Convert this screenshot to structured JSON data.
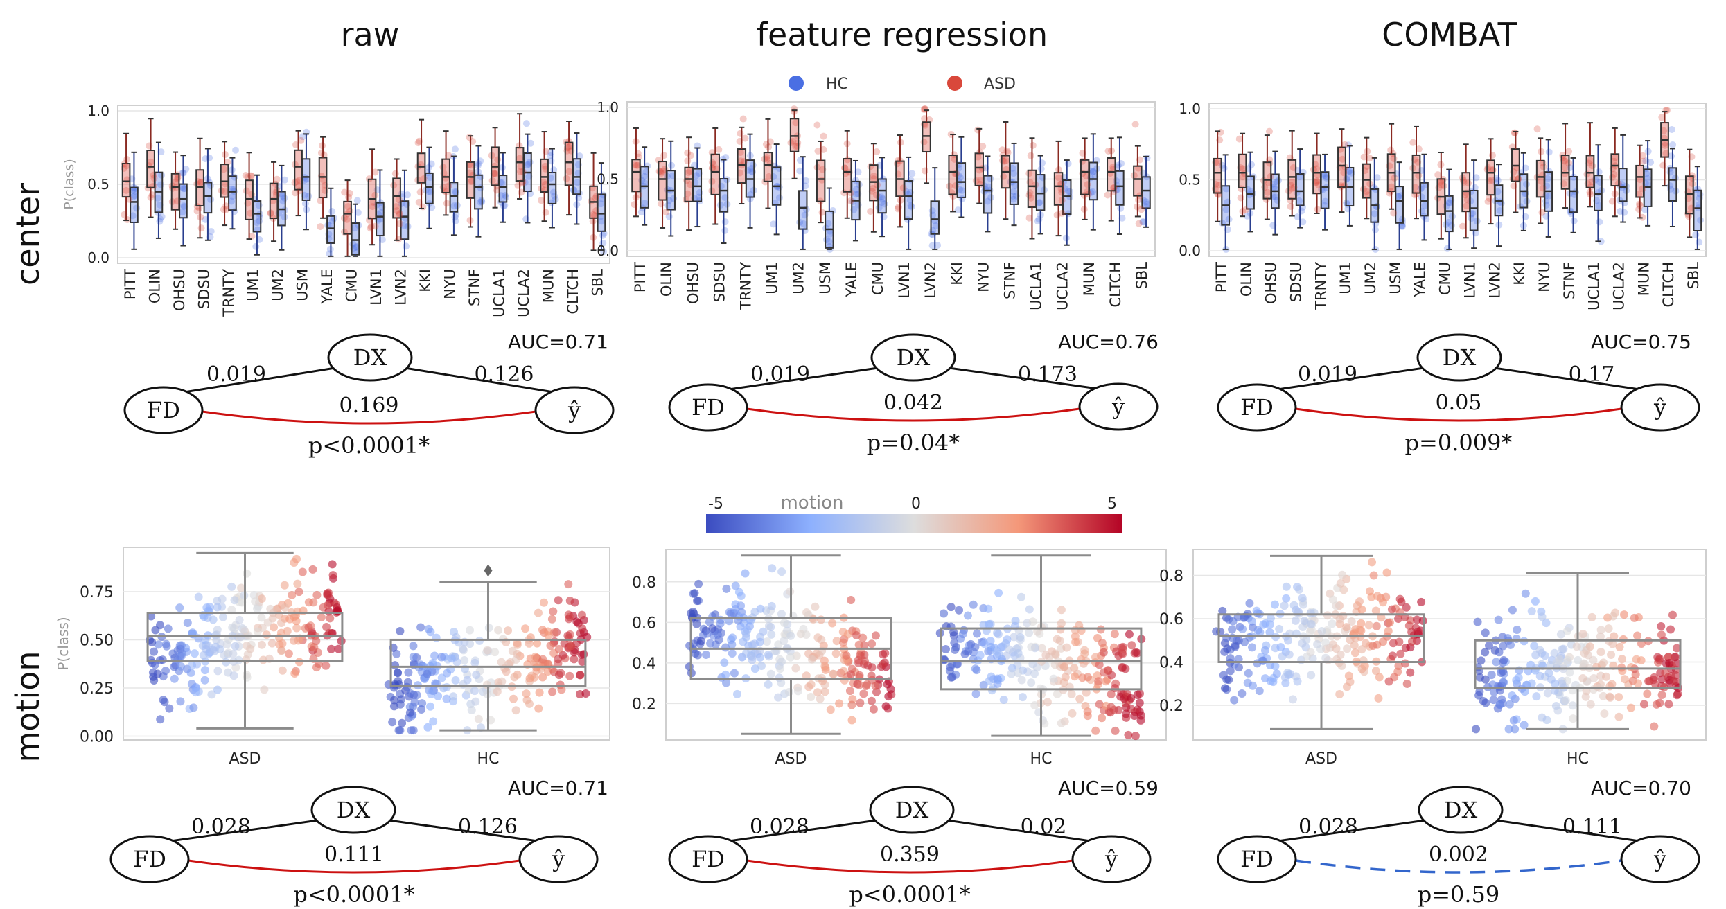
{
  "column_titles": [
    "raw",
    "feature regression",
    "COMBAT"
  ],
  "row_labels": [
    "center",
    "motion"
  ],
  "legend": [
    {
      "label": "HC",
      "color": "#4a6fe3"
    },
    {
      "label": "ASD",
      "color": "#d9483b"
    }
  ],
  "colorbar": {
    "label": "motion",
    "ticks": [
      -5,
      0,
      5
    ],
    "tick_labels": [
      "-5",
      "0",
      "5"
    ],
    "colormap": "coolwarm"
  },
  "colors": {
    "hc": "#4a6fe3",
    "asd": "#d9483b",
    "significant_edge": "#cc1111",
    "nonsignificant_edge": "#3366cc",
    "box_line": "#333333",
    "motion_box_line": "#8c8c8c",
    "grid": "#e6e6e6",
    "frame": "#cfcfcf"
  },
  "chart_data": [
    {
      "type": "box",
      "panel": "center-raw",
      "ylabel": "P(class)",
      "ylim": [
        0,
        1
      ],
      "yticks": [
        "0.0",
        "0.5",
        "1.0"
      ],
      "categories": [
        "PITT",
        "OLIN",
        "OHSU",
        "SDSU",
        "TRNTY",
        "UM1",
        "UM2",
        "USM",
        "YALE",
        "CMU",
        "LVN1",
        "LVN2",
        "KKI",
        "NYU",
        "STNF",
        "UCLA1",
        "UCLA2",
        "MUN",
        "CLTCH",
        "SBL"
      ],
      "series": [
        {
          "name": "HC",
          "medians": [
            0.38,
            0.45,
            0.4,
            0.42,
            0.45,
            0.3,
            0.33,
            0.55,
            0.2,
            0.12,
            0.28,
            0.28,
            0.48,
            0.42,
            0.48,
            0.48,
            0.58,
            0.5,
            0.55,
            0.3
          ]
        },
        {
          "name": "ASD",
          "medians": [
            0.52,
            0.62,
            0.48,
            0.48,
            0.52,
            0.4,
            0.4,
            0.62,
            0.55,
            0.3,
            0.4,
            0.42,
            0.62,
            0.55,
            0.55,
            0.62,
            0.65,
            0.55,
            0.65,
            0.38
          ]
        }
      ],
      "auc": "AUC=0.71",
      "graph": {
        "fd_dx": "0.019",
        "dx_y": "0.126",
        "fd_y": "0.169",
        "p": "p<0.0001*",
        "significant": true
      }
    },
    {
      "type": "box",
      "panel": "center-feature-regression",
      "ylim": [
        0,
        1
      ],
      "yticks": [
        "0.0",
        "0.5",
        "1.0"
      ],
      "categories": [
        "PITT",
        "OLIN",
        "OHSU",
        "SDSU",
        "TRNTY",
        "UM1",
        "UM2",
        "USM",
        "YALE",
        "CMU",
        "LVN1",
        "LVN2",
        "KKI",
        "NYU",
        "STNF",
        "UCLA1",
        "UCLA2",
        "MUN",
        "CLTCH",
        "SBL"
      ],
      "series": [
        {
          "name": "HC",
          "medians": [
            0.45,
            0.42,
            0.45,
            0.42,
            0.5,
            0.45,
            0.3,
            0.15,
            0.35,
            0.42,
            0.38,
            0.22,
            0.48,
            0.42,
            0.48,
            0.4,
            0.38,
            0.5,
            0.45,
            0.42
          ]
        },
        {
          "name": "ASD",
          "medians": [
            0.55,
            0.5,
            0.5,
            0.55,
            0.6,
            0.6,
            0.8,
            0.5,
            0.55,
            0.48,
            0.5,
            0.8,
            0.55,
            0.58,
            0.55,
            0.45,
            0.45,
            0.55,
            0.55,
            0.5
          ]
        }
      ],
      "auc": "AUC=0.76",
      "graph": {
        "fd_dx": "0.019",
        "dx_y": "0.173",
        "fd_y": "0.042",
        "p": "p=0.04*",
        "significant": true
      }
    },
    {
      "type": "box",
      "panel": "center-combat",
      "ylim": [
        0,
        1
      ],
      "yticks": [
        "0.0",
        "0.5",
        "1.0"
      ],
      "categories": [
        "PITT",
        "OLIN",
        "OHSU",
        "SDSU",
        "TRNTY",
        "UM1",
        "UM2",
        "USM",
        "YALE",
        "CMU",
        "LVN1",
        "LVN2",
        "KKI",
        "NYU",
        "STNF",
        "UCLA1",
        "UCLA2",
        "MUN",
        "CLTCH",
        "SBL"
      ],
      "series": [
        {
          "name": "HC",
          "medians": [
            0.32,
            0.4,
            0.42,
            0.42,
            0.45,
            0.45,
            0.32,
            0.35,
            0.35,
            0.28,
            0.3,
            0.35,
            0.42,
            0.42,
            0.42,
            0.4,
            0.45,
            0.45,
            0.5,
            0.3
          ]
        },
        {
          "name": "ASD",
          "medians": [
            0.55,
            0.55,
            0.5,
            0.52,
            0.55,
            0.6,
            0.5,
            0.55,
            0.55,
            0.38,
            0.42,
            0.55,
            0.6,
            0.52,
            0.55,
            0.55,
            0.6,
            0.52,
            0.78,
            0.4
          ]
        }
      ],
      "auc": "AUC=0.75",
      "graph": {
        "fd_dx": "0.019",
        "dx_y": "0.17",
        "fd_y": "0.05",
        "p": "p=0.009*",
        "significant": true
      }
    },
    {
      "type": "box-scatter",
      "panel": "motion-raw",
      "ylabel": "P(class)",
      "ylim": [
        -0.02,
        0.98
      ],
      "yticks": [
        0,
        0.25,
        0.5,
        0.75
      ],
      "ytick_labels": [
        "0.00",
        "0.25",
        "0.50",
        "0.75"
      ],
      "categories": [
        "ASD",
        "HC"
      ],
      "boxes": [
        {
          "category": "ASD",
          "whisker_low": 0.04,
          "q1": 0.39,
          "median": 0.52,
          "q3": 0.64,
          "whisker_high": 0.95
        },
        {
          "category": "HC",
          "whisker_low": 0.03,
          "q1": 0.26,
          "median": 0.36,
          "q3": 0.5,
          "whisker_high": 0.8,
          "outliers": [
            0.86
          ]
        }
      ],
      "auc": "AUC=0.71",
      "graph": {
        "fd_dx": "0.028",
        "dx_y": "0.126",
        "fd_y": "0.111",
        "p": "p<0.0001*",
        "significant": true
      }
    },
    {
      "type": "box-scatter",
      "panel": "motion-feature-regression",
      "ylim": [
        0.02,
        0.96
      ],
      "yticks": [
        0.2,
        0.4,
        0.6,
        0.8
      ],
      "ytick_labels": [
        "0.2",
        "0.4",
        "0.6",
        "0.8"
      ],
      "categories": [
        "ASD",
        "HC"
      ],
      "boxes": [
        {
          "category": "ASD",
          "whisker_low": 0.05,
          "q1": 0.32,
          "median": 0.47,
          "q3": 0.62,
          "whisker_high": 0.93
        },
        {
          "category": "HC",
          "whisker_low": 0.04,
          "q1": 0.27,
          "median": 0.41,
          "q3": 0.57,
          "whisker_high": 0.93
        }
      ],
      "auc": "AUC=0.59",
      "graph": {
        "fd_dx": "0.028",
        "dx_y": "0.02",
        "fd_y": "0.359",
        "p": "p<0.0001*",
        "significant": true
      }
    },
    {
      "type": "box-scatter",
      "panel": "motion-combat",
      "ylim": [
        0.04,
        0.92
      ],
      "yticks": [
        0.2,
        0.4,
        0.6,
        0.8
      ],
      "ytick_labels": [
        "0.2",
        "0.4",
        "0.6",
        "0.8"
      ],
      "categories": [
        "ASD",
        "HC"
      ],
      "boxes": [
        {
          "category": "ASD",
          "whisker_low": 0.09,
          "q1": 0.4,
          "median": 0.52,
          "q3": 0.62,
          "whisker_high": 0.89
        },
        {
          "category": "HC",
          "whisker_low": 0.09,
          "q1": 0.28,
          "median": 0.37,
          "q3": 0.5,
          "whisker_high": 0.81
        }
      ],
      "auc": "AUC=0.70",
      "graph": {
        "fd_dx": "0.028",
        "dx_y": "0.111",
        "fd_y": "0.002",
        "p": "p=0.59",
        "significant": false
      }
    }
  ]
}
